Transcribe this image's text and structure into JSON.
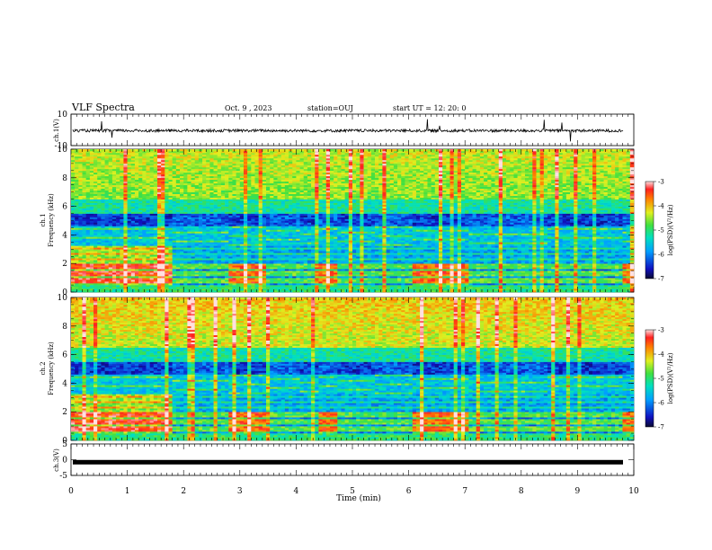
{
  "header": {
    "title": "VLF Spectra",
    "date": "Oct. 9 , 2023",
    "station": "station=OUJ",
    "start": "start UT = 12: 20: 0"
  },
  "chart_data": [
    {
      "type": "line",
      "ylabel": "ch.1(V)",
      "ylim": [
        -10,
        10
      ],
      "y_ticks": [
        "10",
        "-10"
      ],
      "note": "waveform ~ -0.5 V with spikes"
    },
    {
      "type": "heatmap",
      "ylabel": "ch.1\nFrequency (kHz)",
      "ylabel_parts": [
        "ch.1",
        "Frequency (kHz)"
      ],
      "ylim": [
        0,
        10
      ],
      "y_ticks": [
        "0",
        "2",
        "4",
        "6",
        "8",
        "10"
      ],
      "colorbar": {
        "label": "log(PSD)(V²/Hz)",
        "range": [
          -7,
          -3
        ],
        "ticks": [
          "-3",
          "-4",
          "-5",
          "-6",
          "-7"
        ]
      }
    },
    {
      "type": "heatmap",
      "ylabel": "ch.2\nFrequency (kHz)",
      "ylabel_parts": [
        "ch.2",
        "Frequency (kHz)"
      ],
      "ylim": [
        0,
        10
      ],
      "y_ticks": [
        "0",
        "2",
        "4",
        "6",
        "8",
        "10"
      ],
      "colorbar": {
        "label": "log(PSD)(V²/Hz)",
        "range": [
          -7,
          -3
        ],
        "ticks": [
          "-3",
          "-4",
          "-5",
          "-6",
          "-7"
        ]
      }
    },
    {
      "type": "line",
      "ylabel": "ch.3(V)",
      "ylim": [
        -5,
        5
      ],
      "y_ticks": [
        "5",
        "0",
        "-5"
      ],
      "value": -0.8
    }
  ],
  "x_axis": {
    "label": "Time (min)",
    "range": [
      0,
      10
    ],
    "ticks": [
      "0",
      "1",
      "2",
      "3",
      "4",
      "5",
      "6",
      "7",
      "8",
      "9",
      "10"
    ]
  }
}
